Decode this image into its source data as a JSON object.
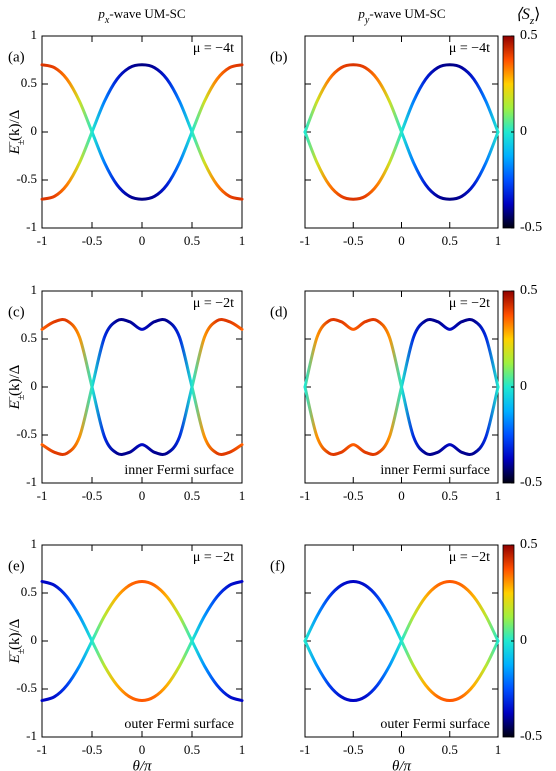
{
  "column_titles": [
    {
      "italic": "p",
      "sub": "x",
      "text": "-wave UM-SC"
    },
    {
      "italic": "p",
      "sub": "y",
      "text": "-wave UM-SC"
    }
  ],
  "colorbar_label": {
    "text": "⟨S",
    "sub": "z",
    "end": "⟩"
  },
  "colormap": {
    "range": [
      -0.5,
      0.5
    ],
    "colors": [
      "#000010",
      "#0000c0",
      "#0050ff",
      "#00b0ff",
      "#20e8d0",
      "#a0f040",
      "#ffd000",
      "#ff5000",
      "#900000"
    ]
  },
  "chart_data": [
    {
      "type": "line",
      "panel_label": "(a)",
      "annotations": [
        {
          "text": "μ = −4t",
          "corner": "top-right"
        }
      ],
      "ylabel": {
        "italic": "E",
        "sub": "±",
        "sup": "−",
        "text": "(k)/Δ"
      },
      "x": [
        -1,
        -0.875,
        -0.75,
        -0.625,
        -0.5,
        -0.375,
        -0.25,
        -0.125,
        0,
        0.125,
        0.25,
        0.375,
        0.5,
        0.625,
        0.75,
        0.875,
        1
      ],
      "xlim": [
        -1,
        1
      ],
      "xticks": [
        -1,
        -0.5,
        0,
        0.5,
        1
      ],
      "ylim": [
        -1,
        1
      ],
      "yticks": [
        -1,
        -0.5,
        0,
        0.5,
        1
      ],
      "ytick_labels": true,
      "series": [
        {
          "values": [
            -0.7,
            -0.67,
            -0.55,
            -0.32,
            0,
            0.32,
            0.55,
            0.67,
            0.7,
            0.67,
            0.55,
            0.32,
            0,
            -0.32,
            -0.55,
            -0.67,
            -0.7
          ],
          "color_values": [
            0.42,
            0.4,
            0.33,
            0.19,
            0,
            -0.19,
            -0.33,
            -0.4,
            -0.42,
            -0.4,
            -0.33,
            -0.19,
            0,
            0.19,
            0.33,
            0.4,
            0.42
          ]
        },
        {
          "values": [
            0.7,
            0.67,
            0.55,
            0.32,
            0,
            -0.32,
            -0.55,
            -0.67,
            -0.7,
            -0.67,
            -0.55,
            -0.32,
            0,
            0.32,
            0.55,
            0.67,
            0.7
          ],
          "color_values": [
            0.42,
            0.4,
            0.33,
            0.19,
            0,
            -0.19,
            -0.33,
            -0.4,
            -0.42,
            -0.4,
            -0.33,
            -0.19,
            0,
            0.19,
            0.33,
            0.4,
            0.42
          ]
        }
      ]
    },
    {
      "type": "line",
      "panel_label": "(b)",
      "annotations": [
        {
          "text": "μ = −4t",
          "corner": "top-right"
        }
      ],
      "x": [
        -1,
        -0.875,
        -0.75,
        -0.625,
        -0.5,
        -0.375,
        -0.25,
        -0.125,
        0,
        0.125,
        0.25,
        0.375,
        0.5,
        0.625,
        0.75,
        0.875,
        1
      ],
      "xlim": [
        -1,
        1
      ],
      "xticks": [
        -1,
        -0.5,
        0,
        0.5,
        1
      ],
      "ylim": [
        -1,
        1
      ],
      "yticks": [
        -1,
        -0.5,
        0,
        0.5,
        1
      ],
      "ytick_labels": false,
      "colorbar": {
        "ticks": [
          0.5,
          0,
          -0.5
        ]
      },
      "series": [
        {
          "values": [
            0,
            -0.32,
            -0.55,
            -0.67,
            -0.7,
            -0.67,
            -0.55,
            -0.32,
            0,
            0.32,
            0.55,
            0.67,
            0.7,
            0.67,
            0.55,
            0.32,
            0
          ],
          "color_values": [
            0,
            0.19,
            0.33,
            0.4,
            0.42,
            0.4,
            0.33,
            0.19,
            0,
            -0.19,
            -0.33,
            -0.4,
            -0.42,
            -0.4,
            -0.33,
            -0.19,
            0
          ]
        },
        {
          "values": [
            0,
            0.32,
            0.55,
            0.67,
            0.7,
            0.67,
            0.55,
            0.32,
            0,
            -0.32,
            -0.55,
            -0.67,
            -0.7,
            -0.67,
            -0.55,
            -0.32,
            0
          ],
          "color_values": [
            0,
            0.19,
            0.33,
            0.4,
            0.42,
            0.4,
            0.33,
            0.19,
            0,
            -0.19,
            -0.33,
            -0.4,
            -0.42,
            -0.4,
            -0.33,
            -0.19,
            0
          ]
        }
      ]
    },
    {
      "type": "line",
      "panel_label": "(c)",
      "annotations": [
        {
          "text": "μ = −2t",
          "corner": "top-right"
        },
        {
          "text": "inner Fermi surface",
          "corner": "bottom-right"
        }
      ],
      "ylabel": {
        "italic": "E",
        "sub": "±",
        "sup": "−",
        "text": "(k)/Δ"
      },
      "x": [
        -1,
        -0.875,
        -0.75,
        -0.625,
        -0.5,
        -0.375,
        -0.25,
        -0.125,
        0,
        0.125,
        0.25,
        0.375,
        0.5,
        0.625,
        0.75,
        0.875,
        1
      ],
      "xlim": [
        -1,
        1
      ],
      "xticks": [
        -1,
        -0.5,
        0,
        0.5,
        1
      ],
      "ylim": [
        -1,
        1
      ],
      "yticks": [
        -1,
        -0.5,
        0,
        0.5,
        1
      ],
      "ytick_labels": true,
      "series": [
        {
          "values": [
            -0.6,
            -0.68,
            -0.69,
            -0.52,
            0,
            0.52,
            0.69,
            0.68,
            0.6,
            0.68,
            0.69,
            0.52,
            0,
            -0.52,
            -0.69,
            -0.68,
            -0.6
          ],
          "color_values": [
            0.36,
            0.41,
            0.41,
            0.31,
            0,
            -0.31,
            -0.41,
            -0.41,
            -0.36,
            -0.41,
            -0.41,
            -0.31,
            0,
            0.31,
            0.41,
            0.41,
            0.36
          ]
        },
        {
          "values": [
            0.6,
            0.68,
            0.69,
            0.52,
            0,
            -0.52,
            -0.69,
            -0.68,
            -0.6,
            -0.68,
            -0.69,
            -0.52,
            0,
            0.52,
            0.69,
            0.68,
            0.6
          ],
          "color_values": [
            0.36,
            0.41,
            0.41,
            0.31,
            0,
            -0.31,
            -0.41,
            -0.41,
            -0.36,
            -0.41,
            -0.41,
            -0.31,
            0,
            0.31,
            0.41,
            0.41,
            0.36
          ]
        }
      ]
    },
    {
      "type": "line",
      "panel_label": "(d)",
      "annotations": [
        {
          "text": "μ = −2t",
          "corner": "top-right"
        },
        {
          "text": "inner Fermi surface",
          "corner": "bottom-right"
        }
      ],
      "x": [
        -1,
        -0.875,
        -0.75,
        -0.625,
        -0.5,
        -0.375,
        -0.25,
        -0.125,
        0,
        0.125,
        0.25,
        0.375,
        0.5,
        0.625,
        0.75,
        0.875,
        1
      ],
      "xlim": [
        -1,
        1
      ],
      "xticks": [
        -1,
        -0.5,
        0,
        0.5,
        1
      ],
      "ylim": [
        -1,
        1
      ],
      "yticks": [
        -1,
        -0.5,
        0,
        0.5,
        1
      ],
      "ytick_labels": false,
      "colorbar": {
        "ticks": [
          0.5,
          0,
          -0.5
        ]
      },
      "series": [
        {
          "values": [
            0,
            -0.52,
            -0.69,
            -0.68,
            -0.6,
            -0.68,
            -0.69,
            -0.52,
            0,
            0.52,
            0.69,
            0.68,
            0.6,
            0.68,
            0.69,
            0.52,
            0
          ],
          "color_values": [
            0,
            0.31,
            0.41,
            0.41,
            0.36,
            0.41,
            0.41,
            0.31,
            0,
            -0.31,
            -0.41,
            -0.41,
            -0.36,
            -0.41,
            -0.41,
            -0.31,
            0
          ]
        },
        {
          "values": [
            0,
            0.52,
            0.69,
            0.68,
            0.6,
            0.68,
            0.69,
            0.52,
            0,
            -0.52,
            -0.69,
            -0.68,
            -0.6,
            -0.68,
            -0.69,
            -0.52,
            0
          ],
          "color_values": [
            0,
            0.31,
            0.41,
            0.41,
            0.36,
            0.41,
            0.41,
            0.31,
            0,
            -0.31,
            -0.41,
            -0.41,
            -0.36,
            -0.41,
            -0.41,
            -0.31,
            0
          ]
        }
      ]
    },
    {
      "type": "line",
      "panel_label": "(e)",
      "annotations": [
        {
          "text": "μ = −2t",
          "corner": "top-right"
        },
        {
          "text": "outer Fermi surface",
          "corner": "bottom-right"
        }
      ],
      "ylabel": {
        "italic": "E",
        "sub": "±",
        "sup": "−",
        "text": "(k)/Δ"
      },
      "xlabel": "θ/π",
      "x": [
        -1,
        -0.875,
        -0.75,
        -0.625,
        -0.5,
        -0.375,
        -0.25,
        -0.125,
        0,
        0.125,
        0.25,
        0.375,
        0.5,
        0.625,
        0.75,
        0.875,
        1
      ],
      "xlim": [
        -1,
        1
      ],
      "xticks": [
        -1,
        -0.5,
        0,
        0.5,
        1
      ],
      "ylim": [
        -1,
        1
      ],
      "yticks": [
        -1,
        -0.5,
        0,
        0.5,
        1
      ],
      "ytick_labels": true,
      "series": [
        {
          "values": [
            -0.62,
            -0.58,
            -0.46,
            -0.26,
            0,
            0.26,
            0.46,
            0.58,
            0.62,
            0.58,
            0.46,
            0.26,
            0,
            -0.26,
            -0.46,
            -0.58,
            -0.62
          ],
          "color_values": [
            -0.37,
            -0.35,
            -0.28,
            -0.16,
            0,
            0.16,
            0.28,
            0.35,
            0.37,
            0.35,
            0.28,
            0.16,
            0,
            -0.16,
            -0.28,
            -0.35,
            -0.37
          ]
        },
        {
          "values": [
            0.62,
            0.58,
            0.46,
            0.26,
            0,
            -0.26,
            -0.46,
            -0.58,
            -0.62,
            -0.58,
            -0.46,
            -0.26,
            0,
            0.26,
            0.46,
            0.58,
            0.62
          ],
          "color_values": [
            -0.37,
            -0.35,
            -0.28,
            -0.16,
            0,
            0.16,
            0.28,
            0.35,
            0.37,
            0.35,
            0.28,
            0.16,
            0,
            -0.16,
            -0.28,
            -0.35,
            -0.37
          ]
        }
      ]
    },
    {
      "type": "line",
      "panel_label": "(f)",
      "annotations": [
        {
          "text": "μ = −2t",
          "corner": "top-right"
        },
        {
          "text": "outer Fermi surface",
          "corner": "bottom-right"
        }
      ],
      "xlabel": "θ/π",
      "x": [
        -1,
        -0.875,
        -0.75,
        -0.625,
        -0.5,
        -0.375,
        -0.25,
        -0.125,
        0,
        0.125,
        0.25,
        0.375,
        0.5,
        0.625,
        0.75,
        0.875,
        1
      ],
      "xlim": [
        -1,
        1
      ],
      "xticks": [
        -1,
        -0.5,
        0,
        0.5,
        1
      ],
      "ylim": [
        -1,
        1
      ],
      "yticks": [
        -1,
        -0.5,
        0,
        0.5,
        1
      ],
      "ytick_labels": false,
      "colorbar": {
        "ticks": [
          0.5,
          0,
          -0.5
        ]
      },
      "series": [
        {
          "values": [
            0,
            0.26,
            0.46,
            0.58,
            0.62,
            0.58,
            0.46,
            0.26,
            0,
            -0.26,
            -0.46,
            -0.58,
            -0.62,
            -0.58,
            -0.46,
            -0.26,
            0
          ],
          "color_values": [
            0,
            -0.16,
            -0.28,
            -0.35,
            -0.37,
            -0.35,
            -0.28,
            -0.16,
            0,
            0.16,
            0.28,
            0.35,
            0.37,
            0.35,
            0.28,
            0.16,
            0
          ]
        },
        {
          "values": [
            0,
            -0.26,
            -0.46,
            -0.58,
            -0.62,
            -0.58,
            -0.46,
            -0.26,
            0,
            0.26,
            0.46,
            0.58,
            0.62,
            0.58,
            0.46,
            0.26,
            0
          ],
          "color_values": [
            0,
            -0.16,
            -0.28,
            -0.35,
            -0.37,
            -0.35,
            -0.28,
            -0.16,
            0,
            0.16,
            0.28,
            0.35,
            0.37,
            0.35,
            0.28,
            0.16,
            0
          ]
        }
      ]
    }
  ]
}
